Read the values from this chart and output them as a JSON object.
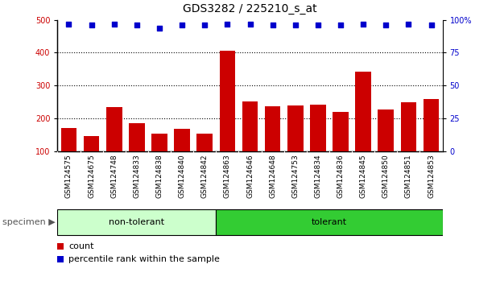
{
  "title": "GDS3282 / 225210_s_at",
  "samples": [
    "GSM124575",
    "GSM124675",
    "GSM124748",
    "GSM124833",
    "GSM124838",
    "GSM124840",
    "GSM124842",
    "GSM124863",
    "GSM124646",
    "GSM124648",
    "GSM124753",
    "GSM124834",
    "GSM124836",
    "GSM124845",
    "GSM124850",
    "GSM124851",
    "GSM124853"
  ],
  "counts": [
    170,
    145,
    235,
    185,
    153,
    168,
    152,
    405,
    252,
    237,
    240,
    242,
    220,
    342,
    228,
    248,
    258
  ],
  "percentiles": [
    97,
    96,
    97,
    96,
    94,
    96,
    96,
    97,
    97,
    96,
    96,
    96,
    96,
    97,
    96,
    97,
    96
  ],
  "non_tolerant_count": 7,
  "tolerant_count": 10,
  "bar_color": "#cc0000",
  "dot_color": "#0000cc",
  "ylim_left": [
    100,
    500
  ],
  "ylim_right": [
    0,
    100
  ],
  "yticks_left": [
    100,
    200,
    300,
    400,
    500
  ],
  "yticks_right": [
    0,
    25,
    50,
    75,
    100
  ],
  "grid_values": [
    200,
    300,
    400
  ],
  "non_tolerant_color": "#ccffcc",
  "tolerant_color": "#33cc33",
  "specimen_label": "specimen",
  "legend_count_label": "count",
  "legend_percentile_label": "percentile rank within the sample",
  "tick_area_color": "#cccccc",
  "title_fontsize": 10,
  "bar_fontsize": 6.5,
  "legend_fontsize": 8
}
